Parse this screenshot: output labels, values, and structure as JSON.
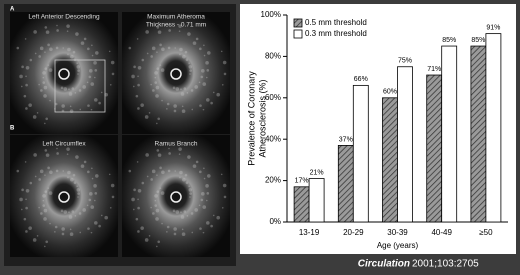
{
  "chart_data": {
    "type": "bar",
    "ylabel": [
      "Prevalence of Coronary",
      "Atherosclerosis (%)"
    ],
    "xlabel": "Age (years)",
    "categories": [
      "13-19",
      "20-29",
      "30-39",
      "40-49",
      "≥50"
    ],
    "series": [
      {
        "name": "0.5 mm threshold",
        "color": "#888888",
        "hatch": true,
        "values": [
          17,
          37,
          60,
          71,
          85
        ],
        "value_labels": [
          "17%",
          "37%",
          "60%",
          "71%",
          "85%"
        ]
      },
      {
        "name": "0.3 mm threshold",
        "color": "#ffffff",
        "hatch": false,
        "values": [
          21,
          66,
          75,
          85,
          91
        ],
        "value_labels": [
          "21%",
          "66%",
          "75%",
          "85%",
          "91%"
        ]
      }
    ],
    "ylim": [
      0,
      100
    ],
    "yticks": [
      {
        "value": 0,
        "label": "0%"
      },
      {
        "value": 20,
        "label": "20%"
      },
      {
        "value": 40,
        "label": "40%"
      },
      {
        "value": 60,
        "label": "60%"
      },
      {
        "value": 80,
        "label": "80%"
      },
      {
        "value": 100,
        "label": "100%"
      }
    ],
    "legend": "upper left"
  },
  "panels": {
    "a_letter": "A",
    "a_left": "Left Anterior Descending",
    "a_right": [
      "Maximum Atheroma",
      "Thickness - 0.71 mm"
    ],
    "b_letter": "B",
    "b_left": "Left Circumflex",
    "b_right": "Ramus Branch"
  },
  "citation": {
    "journal": "Circulation",
    "ref": "2001;103:2705"
  }
}
